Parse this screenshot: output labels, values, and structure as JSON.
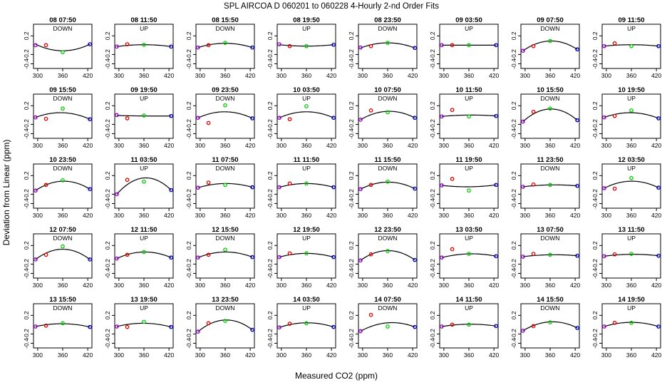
{
  "figure": {
    "title": "SPL   AIRCOA D   060201 to 060228   4-Hourly 2-nd Order Fits",
    "xlabel": "Measured CO2 (ppm)",
    "ylabel": "Deviation from Linear (ppm)"
  },
  "colors": {
    "curve": "#000000",
    "std_low": "#9900cc",
    "std_mid_low": "#dd0000",
    "std_mid_high": "#00cc00",
    "std_high": "#0000cc"
  },
  "chart_data": {
    "type": "scatter",
    "rows": 5,
    "cols": 8,
    "xlim": [
      290,
      430
    ],
    "ylim": [
      -0.5,
      0.45
    ],
    "xticks": [
      "300",
      "360",
      "420"
    ],
    "yticks": [
      "-0.4",
      "-0.2",
      "0.2"
    ],
    "standards_x": [
      295,
      320,
      360,
      425
    ],
    "grid": false,
    "panels": [
      {
        "title": "08 07:50",
        "dir": "DOWN",
        "y": [
          0.0,
          0.0,
          -0.15,
          0.02
        ],
        "fit": [
          0.02,
          -0.05,
          -0.12,
          0.02
        ]
      },
      {
        "title": "08 11:50",
        "dir": "UP",
        "y": [
          -0.03,
          0.02,
          0.01,
          -0.03
        ],
        "fit": [
          -0.03,
          0.0,
          0.01,
          -0.03
        ]
      },
      {
        "title": "08 15:50",
        "dir": "DOWN",
        "y": [
          -0.05,
          0.0,
          0.05,
          -0.05
        ],
        "fit": [
          -0.05,
          0.01,
          0.04,
          -0.05
        ]
      },
      {
        "title": "08 19:50",
        "dir": "UP",
        "y": [
          0.02,
          -0.02,
          -0.02,
          0.01
        ],
        "fit": [
          0.01,
          -0.01,
          -0.02,
          0.01
        ]
      },
      {
        "title": "08 23:50",
        "dir": "DOWN",
        "y": [
          -0.05,
          -0.02,
          0.05,
          -0.06
        ],
        "fit": [
          -0.06,
          0.01,
          0.05,
          -0.06
        ]
      },
      {
        "title": "09 03:50",
        "dir": "UP",
        "y": [
          0.0,
          0.0,
          0.0,
          0.0
        ],
        "fit": [
          0.0,
          0.0,
          0.0,
          0.0
        ]
      },
      {
        "title": "09 07:50",
        "dir": "DOWN",
        "y": [
          -0.12,
          -0.02,
          0.09,
          -0.09
        ],
        "fit": [
          -0.12,
          0.0,
          0.09,
          -0.09
        ]
      },
      {
        "title": "09 11:50",
        "dir": "UP",
        "y": [
          -0.02,
          0.04,
          -0.02,
          -0.02
        ],
        "fit": [
          -0.02,
          0.0,
          0.01,
          -0.02
        ]
      },
      {
        "title": "09 15:50",
        "dir": "DOWN",
        "y": [
          -0.05,
          -0.08,
          0.14,
          -0.09
        ],
        "fit": [
          -0.05,
          0.01,
          0.05,
          -0.09
        ]
      },
      {
        "title": "09 19:50",
        "dir": "UP",
        "y": [
          0.0,
          -0.07,
          -0.01,
          -0.02
        ],
        "fit": [
          -0.01,
          -0.02,
          -0.02,
          -0.02
        ]
      },
      {
        "title": "09 23:50",
        "dir": "DOWN",
        "y": [
          -0.06,
          -0.17,
          0.21,
          -0.07
        ],
        "fit": [
          -0.06,
          0.02,
          0.07,
          -0.07
        ]
      },
      {
        "title": "10 03:50",
        "dir": "UP",
        "y": [
          -0.06,
          -0.09,
          0.19,
          -0.06
        ],
        "fit": [
          -0.06,
          0.02,
          0.07,
          -0.06
        ]
      },
      {
        "title": "10 07:50",
        "dir": "DOWN",
        "y": [
          -0.1,
          0.1,
          0.06,
          -0.06
        ],
        "fit": [
          -0.1,
          0.02,
          0.08,
          -0.06
        ]
      },
      {
        "title": "10 11:50",
        "dir": "UP",
        "y": [
          -0.03,
          0.11,
          -0.03,
          -0.02
        ],
        "fit": [
          -0.03,
          -0.01,
          0.0,
          -0.02
        ]
      },
      {
        "title": "10 15:50",
        "dir": "DOWN",
        "y": [
          -0.14,
          0.07,
          0.14,
          -0.11
        ],
        "fit": [
          -0.14,
          0.04,
          0.13,
          -0.11
        ]
      },
      {
        "title": "10 19:50",
        "dir": "UP",
        "y": [
          -0.05,
          -0.02,
          0.1,
          -0.07
        ],
        "fit": [
          -0.05,
          0.01,
          0.05,
          -0.07
        ]
      },
      {
        "title": "10 23:50",
        "dir": "DOWN",
        "y": [
          -0.12,
          0.0,
          0.1,
          -0.09
        ],
        "fit": [
          -0.12,
          0.0,
          0.08,
          -0.09
        ]
      },
      {
        "title": "11 03:50",
        "dir": "UP",
        "y": [
          -0.2,
          0.11,
          0.07,
          -0.11
        ],
        "fit": [
          -0.2,
          0.03,
          0.15,
          -0.11
        ]
      },
      {
        "title": "11 07:50",
        "dir": "DOWN",
        "y": [
          -0.06,
          0.05,
          0.0,
          -0.05
        ],
        "fit": [
          -0.06,
          0.0,
          0.03,
          -0.05
        ]
      },
      {
        "title": "11 11:50",
        "dir": "UP",
        "y": [
          -0.05,
          0.03,
          0.03,
          -0.05
        ],
        "fit": [
          -0.05,
          0.01,
          0.03,
          -0.05
        ]
      },
      {
        "title": "11 15:50",
        "dir": "DOWN",
        "y": [
          -0.09,
          0.0,
          0.07,
          -0.08
        ],
        "fit": [
          -0.09,
          0.02,
          0.06,
          -0.08
        ]
      },
      {
        "title": "11 19:50",
        "dir": "UP",
        "y": [
          -0.01,
          0.13,
          -0.12,
          0.0
        ],
        "fit": [
          -0.01,
          -0.03,
          -0.04,
          0.0
        ]
      },
      {
        "title": "11 23:50",
        "dir": "DOWN",
        "y": [
          -0.04,
          0.01,
          0.0,
          -0.02
        ],
        "fit": [
          -0.04,
          0.0,
          0.0,
          -0.02
        ]
      },
      {
        "title": "12 03:50",
        "dir": "UP",
        "y": [
          -0.07,
          -0.08,
          0.15,
          -0.06
        ],
        "fit": [
          -0.07,
          0.03,
          0.08,
          -0.06
        ]
      },
      {
        "title": "12 07:50",
        "dir": "DOWN",
        "y": [
          -0.1,
          0.0,
          0.18,
          -0.1
        ],
        "fit": [
          -0.1,
          0.04,
          0.12,
          -0.1
        ]
      },
      {
        "title": "12 11:50",
        "dir": "UP",
        "y": [
          -0.08,
          0.0,
          0.06,
          -0.06
        ],
        "fit": [
          -0.08,
          0.01,
          0.06,
          -0.06
        ]
      },
      {
        "title": "12 15:50",
        "dir": "DOWN",
        "y": [
          -0.06,
          0.0,
          0.11,
          -0.05
        ],
        "fit": [
          -0.06,
          0.02,
          0.06,
          -0.05
        ]
      },
      {
        "title": "12 19:50",
        "dir": "UP",
        "y": [
          -0.05,
          0.03,
          0.03,
          -0.05
        ],
        "fit": [
          -0.05,
          0.01,
          0.03,
          -0.05
        ]
      },
      {
        "title": "12 23:50",
        "dir": "DOWN",
        "y": [
          -0.12,
          0.01,
          0.08,
          -0.11
        ],
        "fit": [
          -0.12,
          0.02,
          0.09,
          -0.11
        ]
      },
      {
        "title": "13 03:50",
        "dir": "UP",
        "y": [
          -0.06,
          0.12,
          0.02,
          -0.03
        ],
        "fit": [
          -0.06,
          0.0,
          0.02,
          -0.03
        ]
      },
      {
        "title": "13 07:50",
        "dir": "DOWN",
        "y": [
          -0.04,
          0.02,
          0.0,
          -0.02
        ],
        "fit": [
          -0.04,
          0.0,
          0.0,
          -0.02
        ]
      },
      {
        "title": "13 11:50",
        "dir": "UP",
        "y": [
          -0.03,
          0.01,
          0.02,
          -0.02
        ],
        "fit": [
          -0.03,
          0.0,
          0.01,
          -0.02
        ]
      },
      {
        "title": "13 15:50",
        "dir": "DOWN",
        "y": [
          -0.04,
          -0.02,
          0.03,
          -0.05
        ],
        "fit": [
          -0.04,
          0.0,
          0.02,
          -0.05
        ]
      },
      {
        "title": "13 19:50",
        "dir": "UP",
        "y": [
          -0.04,
          -0.05,
          0.06,
          -0.05
        ],
        "fit": [
          -0.04,
          0.01,
          0.03,
          -0.05
        ]
      },
      {
        "title": "13 23:50",
        "dir": "DOWN",
        "y": [
          -0.15,
          0.03,
          0.08,
          -0.11
        ],
        "fit": [
          -0.15,
          0.02,
          0.1,
          -0.11
        ]
      },
      {
        "title": "14 03:50",
        "dir": "UP",
        "y": [
          -0.06,
          0.02,
          0.03,
          -0.05
        ],
        "fit": [
          -0.06,
          0.01,
          0.04,
          -0.05
        ]
      },
      {
        "title": "14 07:50",
        "dir": "DOWN",
        "y": [
          -0.14,
          0.21,
          -0.04,
          -0.05
        ],
        "fit": [
          -0.14,
          0.02,
          0.04,
          -0.05
        ]
      },
      {
        "title": "14 11:50",
        "dir": "UP",
        "y": [
          -0.04,
          0.0,
          0.0,
          -0.03
        ],
        "fit": [
          -0.04,
          0.0,
          0.01,
          -0.03
        ]
      },
      {
        "title": "14 15:50",
        "dir": "DOWN",
        "y": [
          -0.13,
          -0.03,
          0.05,
          -0.07
        ],
        "fit": [
          -0.13,
          0.0,
          0.06,
          -0.07
        ]
      },
      {
        "title": "14 19:50",
        "dir": "UP",
        "y": [
          -0.04,
          0.04,
          0.04,
          -0.04
        ],
        "fit": [
          -0.04,
          0.02,
          0.05,
          -0.04
        ]
      }
    ]
  }
}
